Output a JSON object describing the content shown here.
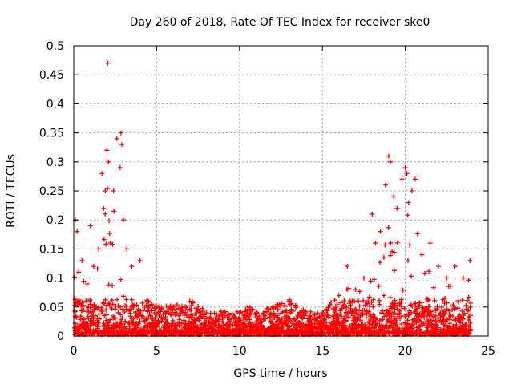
{
  "chart_data": {
    "type": "scatter",
    "title": "Day 260 of 2018, Rate Of TEC Index for receiver ske0",
    "xlabel": "GPS time / hours",
    "ylabel": "ROTI / TECUs",
    "xlim": [
      0,
      25
    ],
    "ylim": [
      0,
      0.5
    ],
    "xticks": [
      "0",
      "5",
      "10",
      "15",
      "20",
      "25"
    ],
    "yticks": [
      "0",
      "0.05",
      "0.1",
      "0.15",
      "0.2",
      "0.25",
      "0.3",
      "0.35",
      "0.4",
      "0.45",
      "0.5"
    ],
    "grid": true,
    "marker": "+",
    "color": "#ff0000",
    "series": [
      {
        "x": [
          0.1,
          0.2,
          0.3,
          0.5,
          0.8,
          1.0,
          1.2,
          1.5,
          1.7,
          1.8,
          1.9,
          2.0,
          2.05,
          2.1,
          2.2,
          2.4,
          2.6,
          2.8,
          2.85,
          2.9,
          3.0,
          3.2,
          3.5,
          4.0,
          4.5,
          5.0,
          6.0,
          7.0,
          8.0,
          9.0,
          10.0,
          10.5,
          11.0,
          12.0,
          13.0,
          14.0,
          15.0,
          16.0,
          16.5,
          17.0,
          17.5,
          18.0,
          18.2,
          18.5,
          18.8,
          19.0,
          19.1,
          19.3,
          19.5,
          19.8,
          20.0,
          20.1,
          20.2,
          20.4,
          20.6,
          21.0,
          21.5,
          22.0,
          22.5,
          23.0,
          23.5,
          23.9
        ],
        "y": [
          0.2,
          0.18,
          0.11,
          0.13,
          0.09,
          0.19,
          0.12,
          0.15,
          0.28,
          0.22,
          0.25,
          0.32,
          0.47,
          0.3,
          0.16,
          0.25,
          0.34,
          0.29,
          0.35,
          0.33,
          0.2,
          0.15,
          0.12,
          0.13,
          0.06,
          0.05,
          0.05,
          0.06,
          0.04,
          0.04,
          0.04,
          0.05,
          0.04,
          0.05,
          0.06,
          0.04,
          0.04,
          0.07,
          0.12,
          0.08,
          0.1,
          0.21,
          0.16,
          0.18,
          0.26,
          0.31,
          0.3,
          0.24,
          0.22,
          0.27,
          0.29,
          0.28,
          0.23,
          0.25,
          0.27,
          0.14,
          0.16,
          0.12,
          0.1,
          0.12,
          0.1,
          0.13
        ]
      }
    ]
  }
}
